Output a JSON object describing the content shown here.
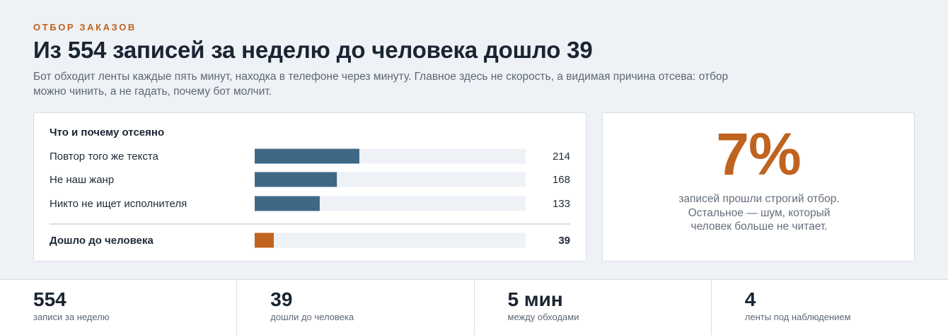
{
  "header": {
    "eyebrow": "ОТБОР ЗАКАЗОВ",
    "title": "Из 554 записей за неделю до человека дошло 39",
    "lede": "Бот обходит ленты каждые пять минут, находка в телефоне через минуту. Главное здесь не скорость, а видимая причина отсева: отбор можно чинить, а не гадать, почему бот молчит."
  },
  "chart_data": {
    "type": "bar",
    "orientation": "horizontal",
    "title": "Что и почему отсеяно",
    "categories": [
      "Повтор того же текста",
      "Не наш жанр",
      "Никто не ищет исполнителя",
      "Дошло до человека"
    ],
    "values": [
      214,
      168,
      133,
      39
    ],
    "xlim": [
      0,
      554
    ],
    "bar_colors": [
      "#3f6887",
      "#3f6887",
      "#3f6887",
      "#bf631f"
    ],
    "track_color": "#eef1f5",
    "grid": false,
    "separator_before_last": true,
    "last_row_bold": true
  },
  "stat": {
    "percent": "7%",
    "caption": "записей прошли строгий отбор. Остальное — шум, который человек больше не читает.",
    "color": "#bf631f"
  },
  "kpis": [
    {
      "value": "554",
      "label": "записи за неделю"
    },
    {
      "value": "39",
      "label": "дошли до человека"
    },
    {
      "value": "5 мин",
      "label": "между обходами"
    },
    {
      "value": "4",
      "label": "ленты под наблюдением"
    }
  ]
}
